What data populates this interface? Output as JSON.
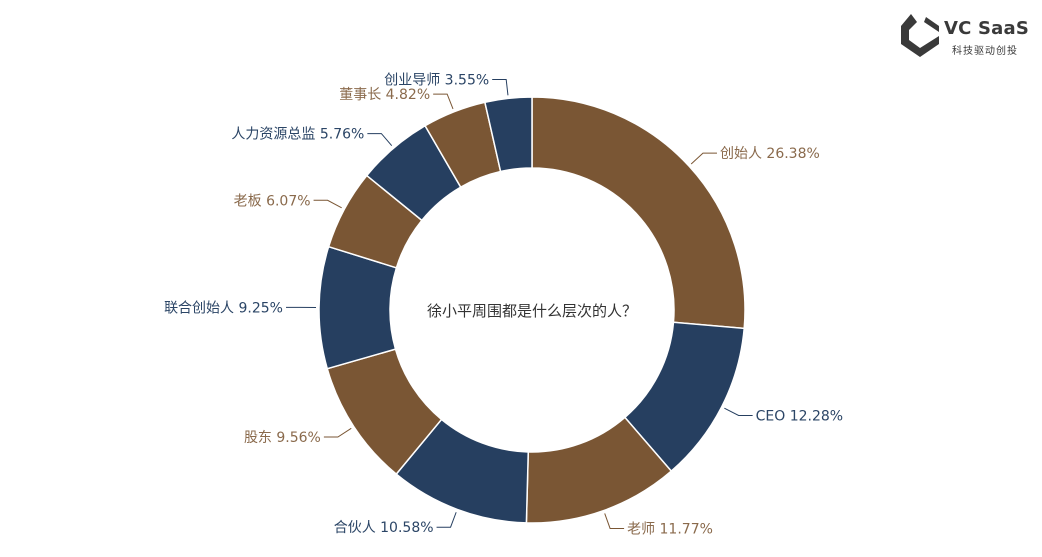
{
  "brand": {
    "name": "VC SaaS",
    "slogan": "科技驱动创投"
  },
  "colors": {
    "brown": "#7a5634",
    "navy": "#263f60",
    "brown_label": "#8a6a4c",
    "navy_label": "#2b4566"
  },
  "chart_data": {
    "type": "pie",
    "variant": "donut",
    "center_text": "徐小平周围都是什么层次的人？",
    "unit": "%",
    "slices": [
      {
        "label": "创始人",
        "value": 26.38,
        "color": "brown"
      },
      {
        "label": "CEO",
        "value": 12.28,
        "color": "navy"
      },
      {
        "label": "老师",
        "value": 11.77,
        "color": "brown"
      },
      {
        "label": "合伙人",
        "value": 10.58,
        "color": "navy"
      },
      {
        "label": "股东",
        "value": 9.56,
        "color": "brown"
      },
      {
        "label": "联合创始人",
        "value": 9.25,
        "color": "navy"
      },
      {
        "label": "老板",
        "value": 6.07,
        "color": "brown"
      },
      {
        "label": "人力资源总监",
        "value": 5.76,
        "color": "navy"
      },
      {
        "label": "董事长",
        "value": 4.82,
        "color": "brown"
      },
      {
        "label": "创业导师",
        "value": 3.55,
        "color": "navy"
      }
    ]
  }
}
